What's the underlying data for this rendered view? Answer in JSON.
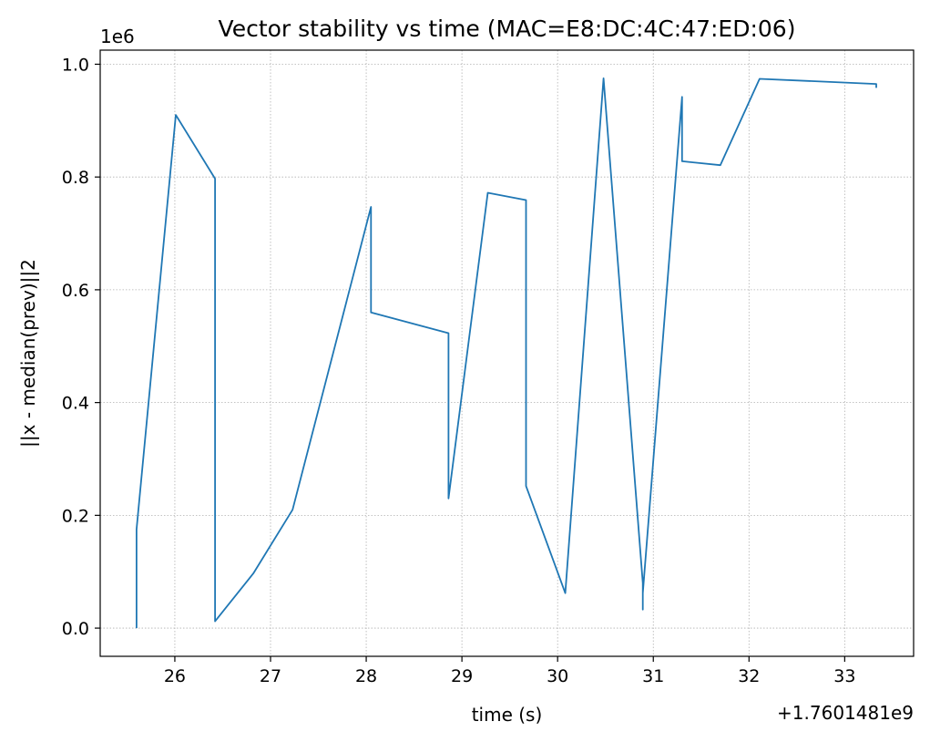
{
  "chart_data": {
    "type": "line",
    "title": "Vector stability vs time (MAC=E8:DC:4C:47:ED:06)",
    "xlabel": "time (s)",
    "ylabel": "||x - median(prev)||2",
    "x_offset_label": "+1.7601481e9",
    "y_scale_label": "1e6",
    "xlim": [
      25.22,
      33.72
    ],
    "ylim": [
      -50000,
      1025000
    ],
    "xticks": [
      26,
      27,
      28,
      29,
      30,
      31,
      32,
      33
    ],
    "xtick_labels": [
      "26",
      "27",
      "28",
      "29",
      "30",
      "31",
      "32",
      "33"
    ],
    "yticks": [
      0,
      200000,
      400000,
      600000,
      800000,
      1000000
    ],
    "ytick_labels": [
      "0.0",
      "0.2",
      "0.4",
      "0.6",
      "0.8",
      "1.0"
    ],
    "grid": true,
    "color": "#1f77b4",
    "series": [
      {
        "x": [
          25.6,
          25.6,
          26.01,
          26.42,
          26.42,
          26.82,
          27.23,
          28.05,
          28.05,
          28.86,
          28.86,
          29.27,
          29.67,
          29.67,
          30.08,
          30.48,
          30.89,
          30.89,
          30.89,
          31.3,
          31.3,
          31.7,
          32.11,
          33.33,
          33.33
        ],
        "y": [
          0,
          175000,
          910000,
          797000,
          12000,
          97000,
          210000,
          747000,
          560000,
          523000,
          230000,
          772000,
          759000,
          252000,
          62000,
          975000,
          80000,
          33000,
          62000,
          942000,
          828000,
          821000,
          974000,
          965000,
          958000
        ]
      }
    ]
  }
}
